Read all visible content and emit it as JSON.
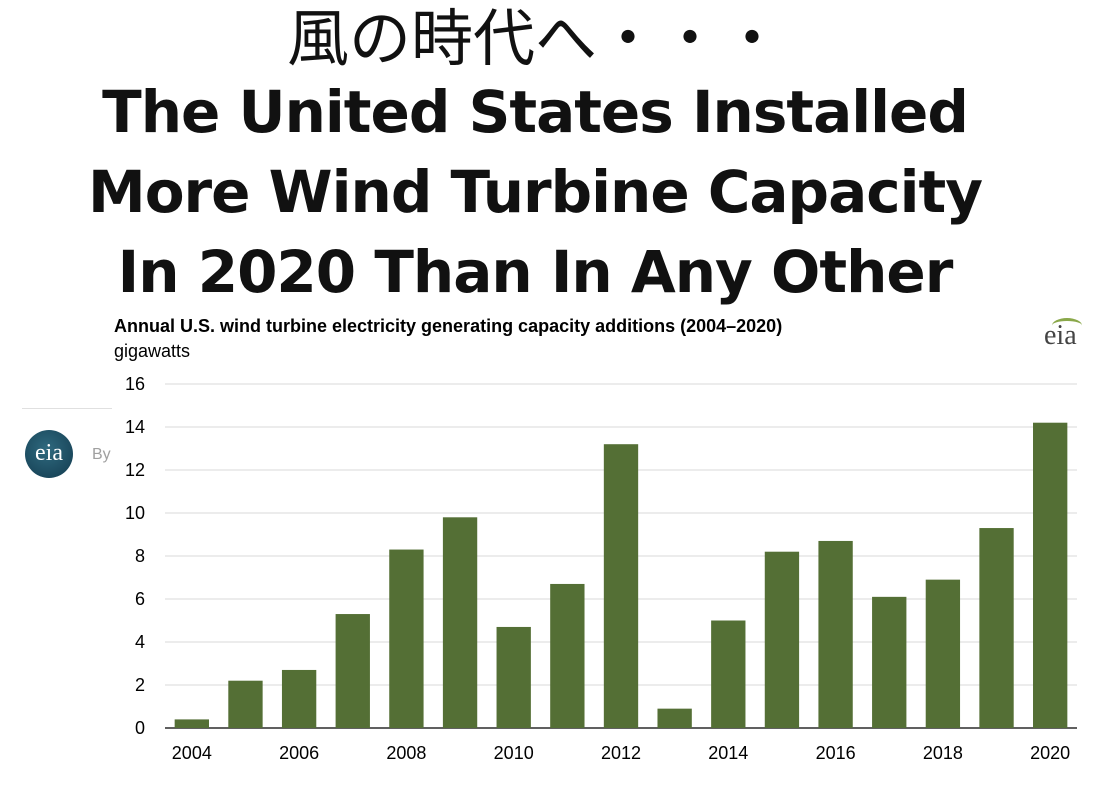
{
  "header": {
    "japanese_title": "風の時代へ・・・",
    "headline_lines": [
      "The United States Installed",
      "More Wind Turbine Capacity",
      "In 2020 Than In Any Other"
    ]
  },
  "background": {
    "logo_text": "eia",
    "byline_fragment": "By"
  },
  "chart_logo": "eia",
  "chart_data": {
    "type": "bar",
    "title": "Annual U.S. wind turbine electricity generating capacity additions (2004–2020)",
    "subtitle": "gigawatts",
    "xlabel": "",
    "ylabel": "",
    "categories": [
      "2004",
      "2005",
      "2006",
      "2007",
      "2008",
      "2009",
      "2010",
      "2011",
      "2012",
      "2013",
      "2014",
      "2015",
      "2016",
      "2017",
      "2018",
      "2019",
      "2020"
    ],
    "x_tick_labels": [
      "2004",
      "2006",
      "2008",
      "2010",
      "2012",
      "2014",
      "2016",
      "2018",
      "2020"
    ],
    "values": [
      0.4,
      2.2,
      2.7,
      5.3,
      8.3,
      9.8,
      4.7,
      6.7,
      13.2,
      0.9,
      5.0,
      8.2,
      8.7,
      6.1,
      6.9,
      9.3,
      14.2
    ],
    "ylim": [
      0,
      16
    ],
    "y_ticks": [
      0,
      2,
      4,
      6,
      8,
      10,
      12,
      14,
      16
    ],
    "grid": true,
    "bar_color": "#546f35",
    "grid_color": "#d9d9d9"
  }
}
